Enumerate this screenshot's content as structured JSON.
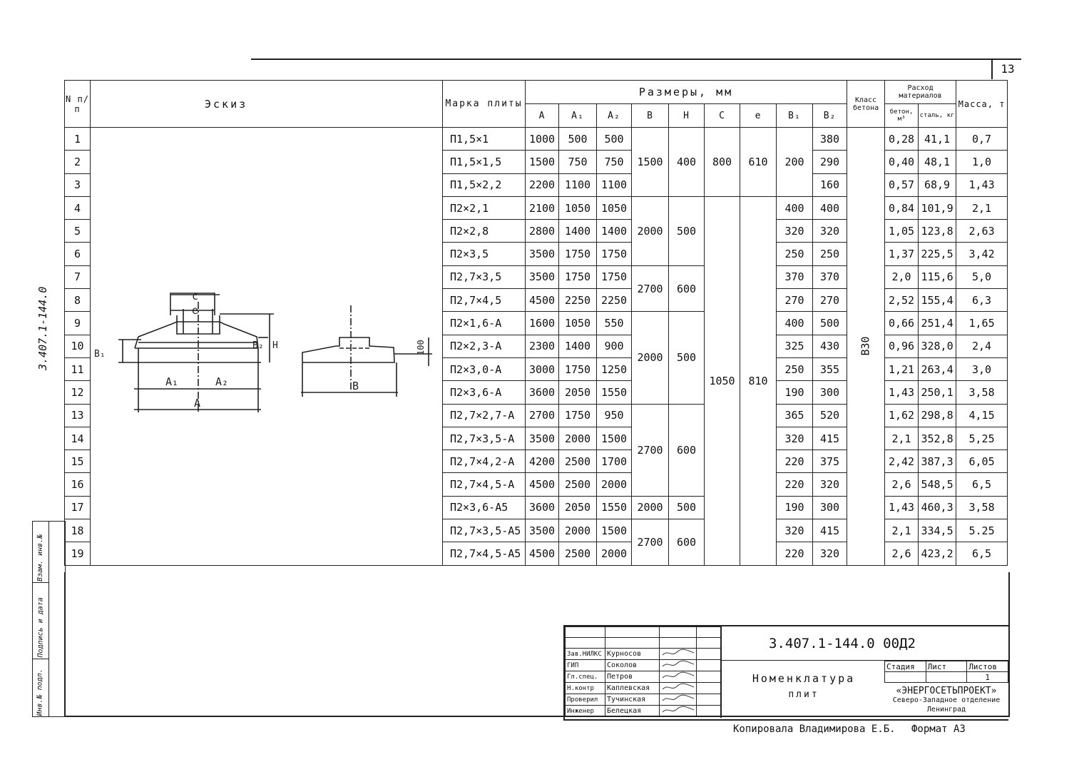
{
  "page_number": "13",
  "side_code": "3.407.1-144.0",
  "side_stamps": [
    "Взам. инв.№",
    "Подпись и дата",
    "Инв.№ подл."
  ],
  "header": {
    "num": "N п/п",
    "sketch": "Эскиз",
    "mark": "Марка плиты",
    "dims": "Размеры, мм",
    "dim_cols": [
      "A",
      "A₁",
      "A₂",
      "B",
      "H",
      "C",
      "e",
      "B₁",
      "B₂"
    ],
    "class": "Класс бетона",
    "consumption": "Расход материалов",
    "concrete": "бетон, м³",
    "steel": "сталь, кг",
    "mass": "Масса, т"
  },
  "sketch_labels": {
    "c": "c",
    "e": "e",
    "b1": "B₁",
    "b2": "B₂",
    "h": "H",
    "a1": "A₁",
    "a2": "A₂",
    "a": "A",
    "b": "B",
    "d100": "100"
  },
  "concrete_class": "B30",
  "rows": [
    {
      "n": "1",
      "mark": "П1,5×1",
      "A": "1000",
      "A1": "500",
      "A2": "500",
      "B2": "380",
      "concrete": "0,28",
      "steel": "41,1",
      "mass": "0,7"
    },
    {
      "n": "2",
      "mark": "П1,5×1,5",
      "A": "1500",
      "A1": "750",
      "A2": "750",
      "B2": "290",
      "concrete": "0,40",
      "steel": "48,1",
      "mass": "1,0"
    },
    {
      "n": "3",
      "mark": "П1,5×2,2",
      "A": "2200",
      "A1": "1100",
      "A2": "1100",
      "B2": "160",
      "concrete": "0,57",
      "steel": "68,9",
      "mass": "1,43"
    },
    {
      "n": "4",
      "mark": "П2×2,1",
      "A": "2100",
      "A1": "1050",
      "A2": "1050",
      "B1": "400",
      "B2": "400",
      "concrete": "0,84",
      "steel": "101,9",
      "mass": "2,1"
    },
    {
      "n": "5",
      "mark": "П2×2,8",
      "A": "2800",
      "A1": "1400",
      "A2": "1400",
      "B1": "320",
      "B2": "320",
      "concrete": "1,05",
      "steel": "123,8",
      "mass": "2,63"
    },
    {
      "n": "6",
      "mark": "П2×3,5",
      "A": "3500",
      "A1": "1750",
      "A2": "1750",
      "B1": "250",
      "B2": "250",
      "concrete": "1,37",
      "steel": "225,5",
      "mass": "3,42"
    },
    {
      "n": "7",
      "mark": "П2,7×3,5",
      "A": "3500",
      "A1": "1750",
      "A2": "1750",
      "B1": "370",
      "B2": "370",
      "concrete": "2,0",
      "steel": "115,6",
      "mass": "5,0"
    },
    {
      "n": "8",
      "mark": "П2,7×4,5",
      "A": "4500",
      "A1": "2250",
      "A2": "2250",
      "B1": "270",
      "B2": "270",
      "concrete": "2,52",
      "steel": "155,4",
      "mass": "6,3"
    },
    {
      "n": "9",
      "mark": "П2×1,6-A",
      "A": "1600",
      "A1": "1050",
      "A2": "550",
      "B1": "400",
      "B2": "500",
      "concrete": "0,66",
      "steel": "251,4",
      "mass": "1,65"
    },
    {
      "n": "10",
      "mark": "П2×2,3-A",
      "A": "2300",
      "A1": "1400",
      "A2": "900",
      "B1": "325",
      "B2": "430",
      "concrete": "0,96",
      "steel": "328,0",
      "mass": "2,4"
    },
    {
      "n": "11",
      "mark": "П2×3,0-A",
      "A": "3000",
      "A1": "1750",
      "A2": "1250",
      "B1": "250",
      "B2": "355",
      "concrete": "1,21",
      "steel": "263,4",
      "mass": "3,0"
    },
    {
      "n": "12",
      "mark": "П2×3,6-A",
      "A": "3600",
      "A1": "2050",
      "A2": "1550",
      "B1": "190",
      "B2": "300",
      "concrete": "1,43",
      "steel": "250,1",
      "mass": "3,58"
    },
    {
      "n": "13",
      "mark": "П2,7×2,7-A",
      "A": "2700",
      "A1": "1750",
      "A2": "950",
      "B1": "365",
      "B2": "520",
      "concrete": "1,62",
      "steel": "298,8",
      "mass": "4,15"
    },
    {
      "n": "14",
      "mark": "П2,7×3,5-A",
      "A": "3500",
      "A1": "2000",
      "A2": "1500",
      "B1": "320",
      "B2": "415",
      "concrete": "2,1",
      "steel": "352,8",
      "mass": "5,25"
    },
    {
      "n": "15",
      "mark": "П2,7×4,2-A",
      "A": "4200",
      "A1": "2500",
      "A2": "1700",
      "B1": "220",
      "B2": "375",
      "concrete": "2,42",
      "steel": "387,3",
      "mass": "6,05"
    },
    {
      "n": "16",
      "mark": "П2,7×4,5-A",
      "A": "4500",
      "A1": "2500",
      "A2": "2000",
      "B1": "220",
      "B2": "320",
      "concrete": "2,6",
      "steel": "548,5",
      "mass": "6,5"
    },
    {
      "n": "17",
      "mark": "П2×3,6-A5",
      "A": "3600",
      "A1": "2050",
      "A2": "1550",
      "B1": "190",
      "B2": "300",
      "concrete": "1,43",
      "steel": "460,3",
      "mass": "3,58"
    },
    {
      "n": "18",
      "mark": "П2,7×3,5-A5",
      "A": "3500",
      "A1": "2000",
      "A2": "1500",
      "B1": "320",
      "B2": "415",
      "concrete": "2,1",
      "steel": "334,5",
      "mass": "5.25"
    },
    {
      "n": "19",
      "mark": "П2,7×4,5-A5",
      "A": "4500",
      "A1": "2500",
      "A2": "2000",
      "B1": "220",
      "B2": "320",
      "concrete": "2,6",
      "steel": "423,2",
      "mass": "6,5"
    }
  ],
  "bh_groups": [
    {
      "from": 1,
      "to": 3,
      "B": "1500",
      "H": "400"
    },
    {
      "from": 4,
      "to": 6,
      "B": "2000",
      "H": "500"
    },
    {
      "from": 7,
      "to": 8,
      "B": "2700",
      "H": "600"
    },
    {
      "from": 9,
      "to": 12,
      "B": "2000",
      "H": "500"
    },
    {
      "from": 13,
      "to": 16,
      "B": "2700",
      "H": "600"
    },
    {
      "from": 17,
      "to": 17,
      "B": "2000",
      "H": "500"
    },
    {
      "from": 18,
      "to": 19,
      "B": "2700",
      "H": "600"
    }
  ],
  "ce_groups": [
    {
      "from": 1,
      "to": 3,
      "C": "800",
      "e": "610",
      "B1": "200"
    },
    {
      "from": 4,
      "to": 19,
      "C": "1050",
      "e": "810"
    }
  ],
  "title_block": {
    "doc_code": "3.407.1-144.0  00Д2",
    "title_line1": "Номенклатура",
    "title_line2": "плит",
    "stage_label": "Стадия",
    "sheet_label": "Лист",
    "sheets_label": "Листов",
    "sheets_value": "1",
    "org": "«ЭНЕРГОСЕТЬПРОЕКТ»",
    "org_branch": "Северо-Западное отделение",
    "org_city": "Ленинград",
    "staff": [
      {
        "role": "Зав.НИЛКС",
        "name": "Курносов"
      },
      {
        "role": "ГИП",
        "name": "Соколов"
      },
      {
        "role": "Гл.спец.",
        "name": "Петров"
      },
      {
        "role": "Н.контр",
        "name": "Каплевская"
      },
      {
        "role": "Проверил",
        "name": "Тучинская"
      },
      {
        "role": "Инженер",
        "name": "Белецкая"
      }
    ],
    "copied": "Копировала Владимирова Е.Б.",
    "format": "Формат А3"
  }
}
